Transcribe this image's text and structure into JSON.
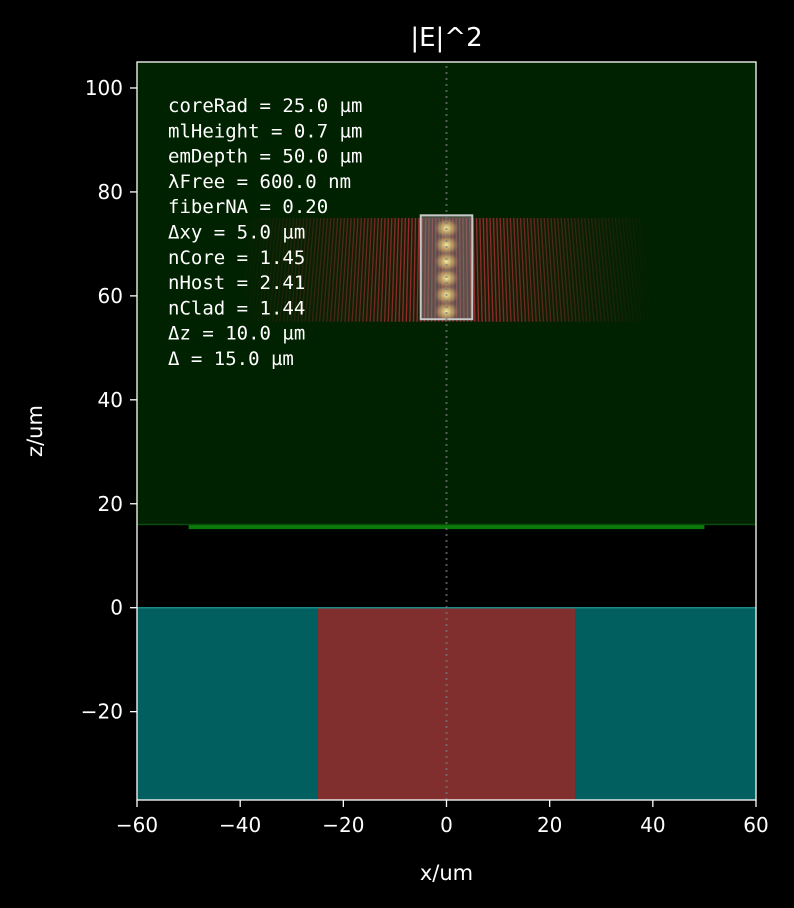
{
  "chart_data": {
    "type": "heatmap",
    "title": "|E|^2",
    "xlabel": "x/um",
    "ylabel": "z/um",
    "xlim": [
      -60,
      60
    ],
    "ylim": [
      -37,
      105
    ],
    "x_ticks": [
      -60,
      -40,
      -20,
      0,
      20,
      40,
      60
    ],
    "x_tick_labels": [
      "−60",
      "−40",
      "−20",
      "0",
      "20",
      "40",
      "60"
    ],
    "y_ticks": [
      -20,
      0,
      20,
      40,
      60,
      80,
      100
    ],
    "y_tick_labels": [
      "−20",
      "0",
      "20",
      "40",
      "60",
      "80",
      "100"
    ],
    "regions": [
      {
        "name": "host",
        "x": [
          -60,
          60
        ],
        "z": [
          16,
          105
        ],
        "color": "#012200"
      },
      {
        "name": "cladding-left",
        "x": [
          -60,
          -25
        ],
        "z": [
          -37,
          0
        ],
        "color": "#025f5f"
      },
      {
        "name": "core",
        "x": [
          -25,
          25
        ],
        "z": [
          -37,
          0
        ],
        "color": "#812e2e"
      },
      {
        "name": "cladding-right",
        "x": [
          25,
          60
        ],
        "z": [
          -37,
          0
        ],
        "color": "#025f5f"
      }
    ],
    "monolayer": {
      "x": [
        -50,
        50
      ],
      "z": 15.5,
      "color": "#0a7a0a"
    },
    "field": {
      "x": [
        -40,
        40
      ],
      "z": [
        55,
        75
      ],
      "color": "#a03030",
      "fringe_spacing": 0.7
    },
    "emitter_box": {
      "x": [
        -5,
        5
      ],
      "z": [
        55.5,
        75.5
      ]
    },
    "center_line_x": 0,
    "annotations": [
      "coreRad = 25.0 µm",
      "mlHeight = 0.7 µm",
      "emDepth = 50.0 µm",
      "λFree = 600.0 nm",
      "fiberNA = 0.20",
      "Δxy = 5.0 µm",
      "nCore = 1.45",
      "nHost = 2.41",
      "nClad = 1.44",
      "Δz = 10.0 µm",
      "Δ = 15.0 µm"
    ]
  }
}
